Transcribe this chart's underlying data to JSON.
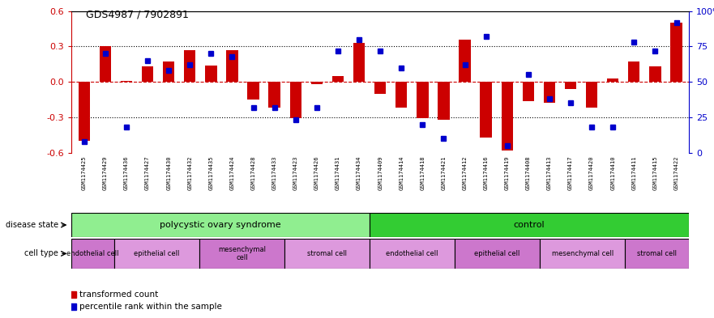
{
  "title": "GDS4987 / 7902891",
  "samples": [
    "GSM1174425",
    "GSM1174429",
    "GSM1174436",
    "GSM1174427",
    "GSM1174430",
    "GSM1174432",
    "GSM1174435",
    "GSM1174424",
    "GSM1174428",
    "GSM1174433",
    "GSM1174423",
    "GSM1174426",
    "GSM1174431",
    "GSM1174434",
    "GSM1174409",
    "GSM1174414",
    "GSM1174418",
    "GSM1174421",
    "GSM1174412",
    "GSM1174416",
    "GSM1174419",
    "GSM1174408",
    "GSM1174413",
    "GSM1174417",
    "GSM1174420",
    "GSM1174410",
    "GSM1174411",
    "GSM1174415",
    "GSM1174422"
  ],
  "red_values": [
    -0.5,
    0.3,
    0.01,
    0.13,
    0.17,
    0.27,
    0.14,
    0.27,
    -0.15,
    -0.22,
    -0.31,
    -0.02,
    0.05,
    0.33,
    -0.1,
    -0.22,
    -0.31,
    -0.32,
    0.36,
    -0.47,
    -0.58,
    -0.16,
    -0.18,
    -0.06,
    -0.22,
    0.03,
    0.17,
    0.13,
    0.5
  ],
  "blue_values": [
    8,
    70,
    18,
    65,
    58,
    62,
    70,
    68,
    32,
    32,
    23,
    32,
    72,
    80,
    72,
    60,
    20,
    10,
    62,
    82,
    5,
    55,
    38,
    35,
    18,
    18,
    78,
    72,
    92
  ],
  "ylim": [
    -0.6,
    0.6
  ],
  "yticks_left": [
    -0.6,
    -0.3,
    0.0,
    0.3,
    0.6
  ],
  "yticks_right": [
    0,
    25,
    50,
    75,
    100
  ],
  "bar_color": "#cc0000",
  "dot_color": "#0000cc",
  "zero_line_color": "#cc0000",
  "dot_line_color": "#000000",
  "bg_color": "#ffffff",
  "pcos_color": "#90ee90",
  "ctrl_color": "#33cc33",
  "cell_violet_light": "#dd88dd",
  "cell_violet_dark": "#cc44cc",
  "xtick_bg": "#cccccc",
  "pcos_n": 14,
  "ctrl_n": 15,
  "cell_types": [
    {
      "label": "endothelial cell",
      "start": 0,
      "end": 2,
      "color": "#cc77cc"
    },
    {
      "label": "epithelial cell",
      "start": 2,
      "end": 6,
      "color": "#dd99dd"
    },
    {
      "label": "mesenchymal\ncell",
      "start": 6,
      "end": 10,
      "color": "#cc77cc"
    },
    {
      "label": "stromal cell",
      "start": 10,
      "end": 14,
      "color": "#dd99dd"
    },
    {
      "label": "endothelial cell",
      "start": 14,
      "end": 18,
      "color": "#dd99dd"
    },
    {
      "label": "epithelial cell",
      "start": 18,
      "end": 22,
      "color": "#cc77cc"
    },
    {
      "label": "mesenchymal cell",
      "start": 22,
      "end": 26,
      "color": "#dd99dd"
    },
    {
      "label": "stromal cell",
      "start": 26,
      "end": 29,
      "color": "#cc77cc"
    }
  ]
}
